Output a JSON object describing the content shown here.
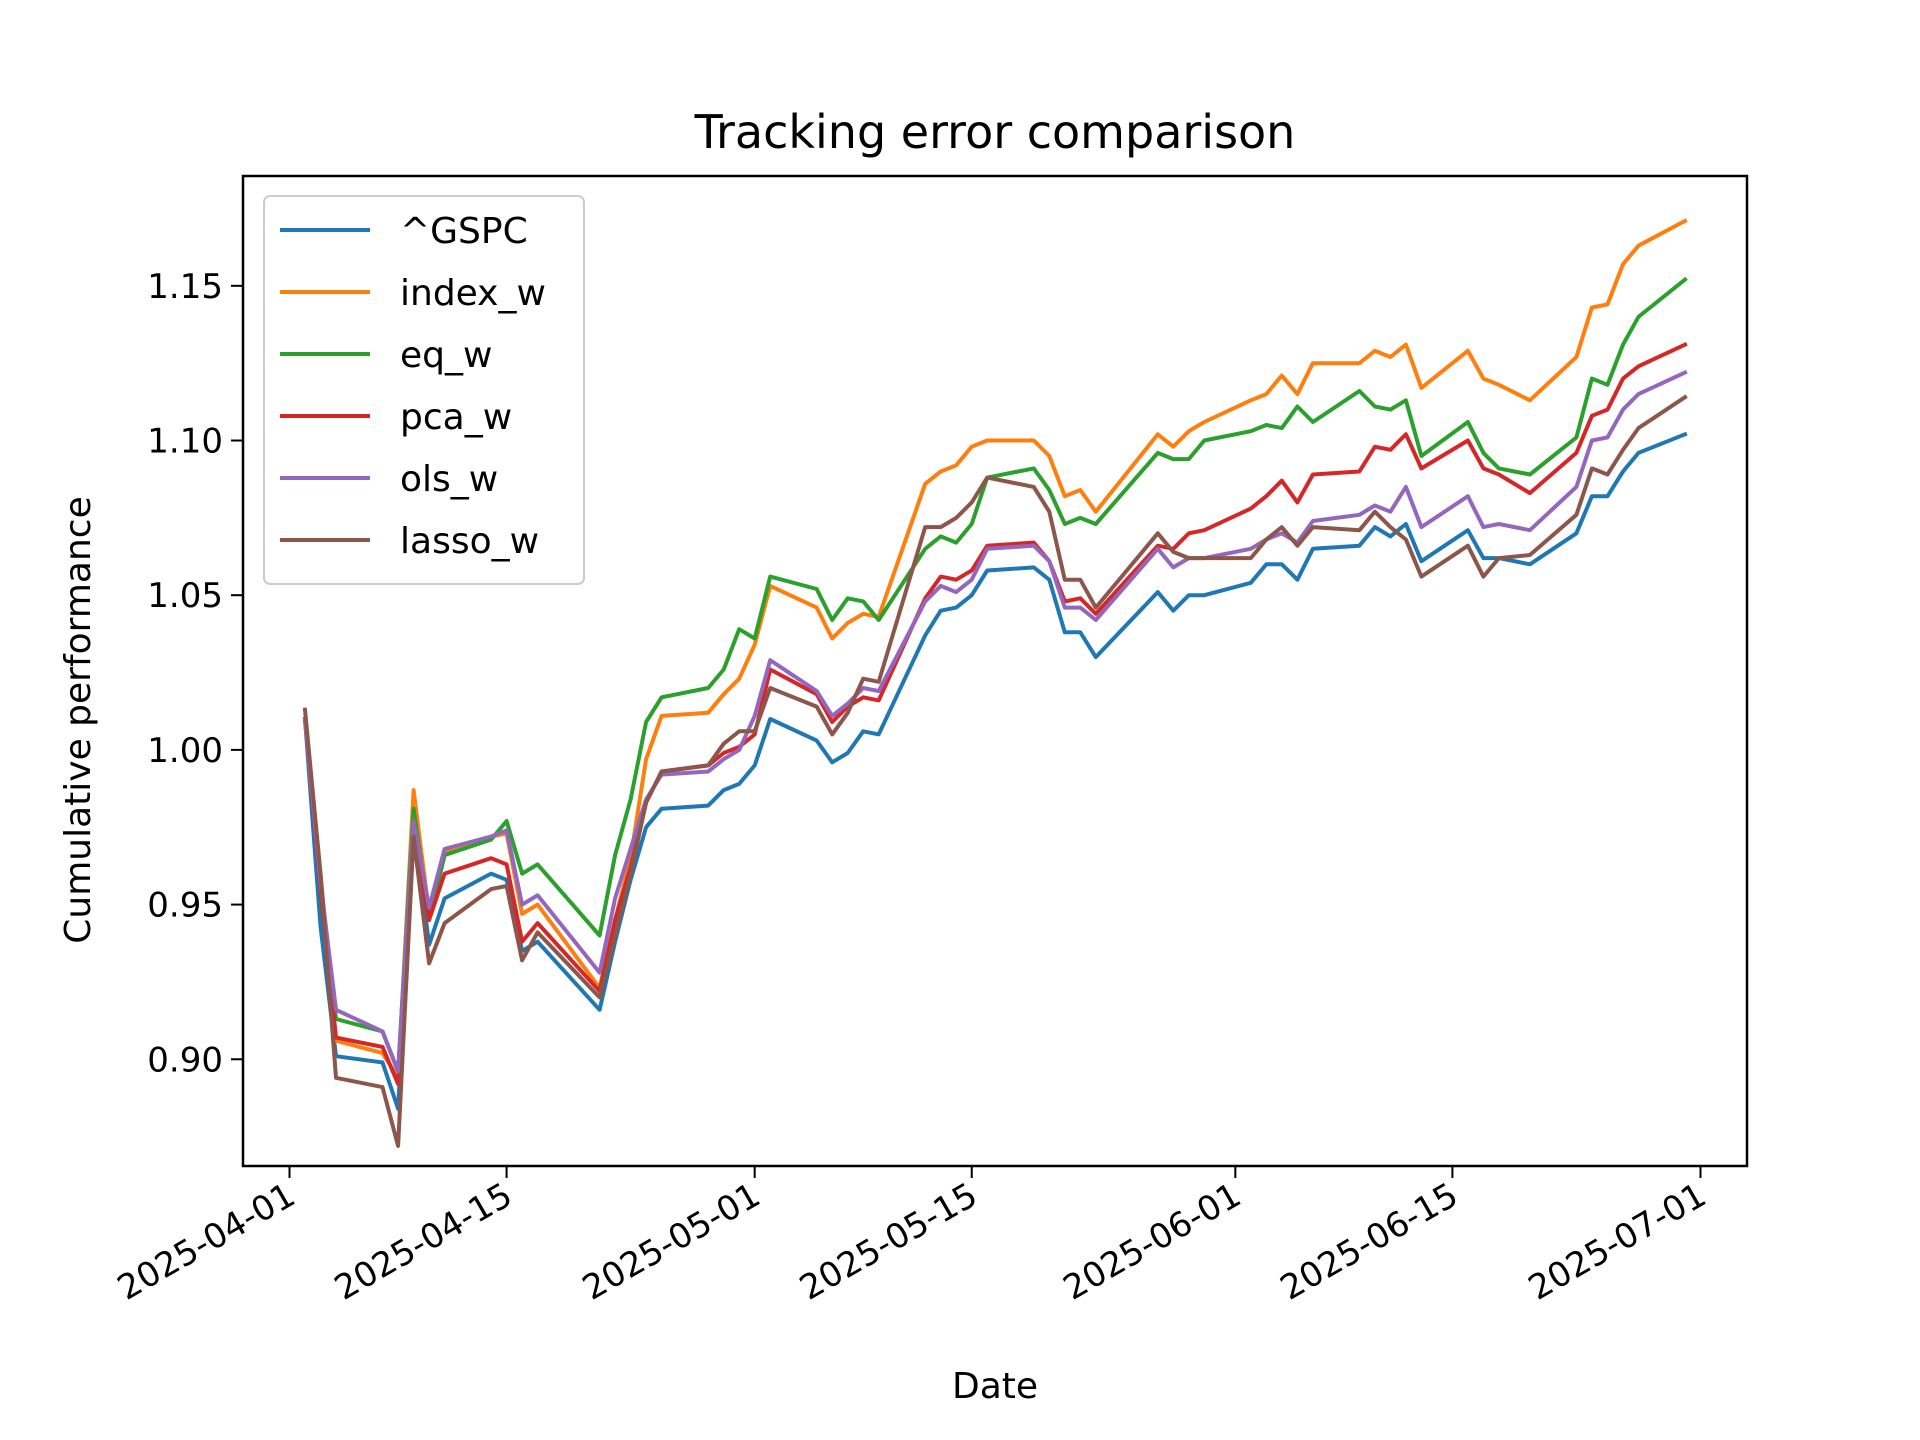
{
  "chart_data": {
    "type": "line",
    "title": "Tracking error comparison",
    "xlabel": "Date",
    "ylabel": "Cumulative performance",
    "x_ticks": [
      "2025-04-01",
      "2025-04-15",
      "2025-05-01",
      "2025-05-15",
      "2025-06-01",
      "2025-06-15",
      "2025-07-01"
    ],
    "y_ticks": [
      "0.90",
      "0.95",
      "1.00",
      "1.05",
      "1.10",
      "1.15"
    ],
    "xlim": [
      "2025-03-29",
      "2025-07-04"
    ],
    "ylim": [
      0.8655,
      1.1855
    ],
    "grid": false,
    "legend_position": "upper-left",
    "x": [
      "2025-04-02",
      "2025-04-03",
      "2025-04-04",
      "2025-04-07",
      "2025-04-08",
      "2025-04-09",
      "2025-04-10",
      "2025-04-11",
      "2025-04-14",
      "2025-04-15",
      "2025-04-16",
      "2025-04-17",
      "2025-04-21",
      "2025-04-22",
      "2025-04-23",
      "2025-04-24",
      "2025-04-25",
      "2025-04-28",
      "2025-04-29",
      "2025-04-30",
      "2025-05-01",
      "2025-05-02",
      "2025-05-05",
      "2025-05-06",
      "2025-05-07",
      "2025-05-08",
      "2025-05-09",
      "2025-05-12",
      "2025-05-13",
      "2025-05-14",
      "2025-05-15",
      "2025-05-16",
      "2025-05-19",
      "2025-05-20",
      "2025-05-21",
      "2025-05-22",
      "2025-05-23",
      "2025-05-27",
      "2025-05-28",
      "2025-05-29",
      "2025-05-30",
      "2025-06-02",
      "2025-06-03",
      "2025-06-04",
      "2025-06-05",
      "2025-06-06",
      "2025-06-09",
      "2025-06-10",
      "2025-06-11",
      "2025-06-12",
      "2025-06-13",
      "2025-06-16",
      "2025-06-17",
      "2025-06-18",
      "2025-06-20",
      "2025-06-23",
      "2025-06-24",
      "2025-06-25",
      "2025-06-26",
      "2025-06-27",
      "2025-06-30"
    ],
    "series": [
      {
        "name": "^GSPC",
        "color": "#1f77b4",
        "values": [
          1.01,
          0.943,
          0.901,
          0.899,
          0.884,
          0.977,
          0.937,
          0.952,
          0.96,
          0.958,
          0.935,
          0.938,
          0.916,
          0.938,
          0.958,
          0.975,
          0.981,
          0.982,
          0.987,
          0.989,
          0.995,
          1.01,
          1.003,
          0.996,
          0.999,
          1.006,
          1.005,
          1.037,
          1.045,
          1.046,
          1.05,
          1.058,
          1.059,
          1.055,
          1.038,
          1.038,
          1.03,
          1.051,
          1.045,
          1.05,
          1.05,
          1.054,
          1.06,
          1.06,
          1.055,
          1.065,
          1.066,
          1.072,
          1.069,
          1.073,
          1.061,
          1.071,
          1.062,
          1.062,
          1.06,
          1.07,
          1.082,
          1.082,
          1.09,
          1.096,
          1.102
        ]
      },
      {
        "name": "index_w",
        "color": "#ff7f0e",
        "values": [
          1.01,
          0.96,
          0.906,
          0.902,
          0.894,
          0.987,
          0.947,
          0.967,
          0.972,
          0.973,
          0.947,
          0.95,
          0.923,
          0.945,
          0.965,
          0.997,
          1.011,
          1.012,
          1.018,
          1.023,
          1.034,
          1.053,
          1.046,
          1.036,
          1.041,
          1.044,
          1.043,
          1.086,
          1.09,
          1.092,
          1.098,
          1.1,
          1.1,
          1.095,
          1.082,
          1.084,
          1.077,
          1.102,
          1.098,
          1.103,
          1.106,
          1.113,
          1.115,
          1.121,
          1.115,
          1.125,
          1.125,
          1.129,
          1.127,
          1.131,
          1.117,
          1.129,
          1.12,
          1.118,
          1.113,
          1.127,
          1.143,
          1.144,
          1.157,
          1.163,
          1.171
        ]
      },
      {
        "name": "eq_w",
        "color": "#2ca02c",
        "values": [
          1.01,
          0.958,
          0.913,
          0.909,
          0.896,
          0.981,
          0.945,
          0.966,
          0.971,
          0.977,
          0.96,
          0.963,
          0.94,
          0.966,
          0.984,
          1.009,
          1.017,
          1.02,
          1.026,
          1.039,
          1.036,
          1.056,
          1.052,
          1.042,
          1.049,
          1.048,
          1.042,
          1.065,
          1.069,
          1.067,
          1.073,
          1.088,
          1.091,
          1.084,
          1.073,
          1.075,
          1.073,
          1.096,
          1.094,
          1.094,
          1.1,
          1.103,
          1.105,
          1.104,
          1.111,
          1.106,
          1.116,
          1.111,
          1.11,
          1.113,
          1.095,
          1.106,
          1.096,
          1.091,
          1.089,
          1.101,
          1.12,
          1.118,
          1.131,
          1.14,
          1.152
        ]
      },
      {
        "name": "pca_w",
        "color": "#d62728",
        "values": [
          1.01,
          0.955,
          0.907,
          0.904,
          0.892,
          0.975,
          0.945,
          0.96,
          0.965,
          0.963,
          0.938,
          0.944,
          0.922,
          0.945,
          0.962,
          0.983,
          0.993,
          0.995,
          0.999,
          1.001,
          1.005,
          1.026,
          1.018,
          1.009,
          1.014,
          1.017,
          1.016,
          1.049,
          1.056,
          1.055,
          1.058,
          1.066,
          1.067,
          1.061,
          1.048,
          1.049,
          1.044,
          1.066,
          1.065,
          1.07,
          1.071,
          1.078,
          1.082,
          1.087,
          1.08,
          1.089,
          1.09,
          1.098,
          1.097,
          1.102,
          1.091,
          1.1,
          1.091,
          1.089,
          1.083,
          1.096,
          1.108,
          1.11,
          1.12,
          1.124,
          1.131
        ]
      },
      {
        "name": "ols_w",
        "color": "#9467bd",
        "values": [
          1.01,
          0.957,
          0.916,
          0.909,
          0.896,
          0.977,
          0.949,
          0.968,
          0.972,
          0.974,
          0.95,
          0.953,
          0.928,
          0.952,
          0.968,
          0.984,
          0.992,
          0.993,
          0.997,
          1.0,
          1.011,
          1.029,
          1.019,
          1.011,
          1.015,
          1.02,
          1.019,
          1.048,
          1.053,
          1.051,
          1.055,
          1.065,
          1.066,
          1.061,
          1.046,
          1.046,
          1.042,
          1.065,
          1.059,
          1.062,
          1.062,
          1.065,
          1.068,
          1.07,
          1.067,
          1.074,
          1.076,
          1.079,
          1.077,
          1.085,
          1.072,
          1.082,
          1.072,
          1.073,
          1.071,
          1.085,
          1.1,
          1.101,
          1.11,
          1.115,
          1.122
        ]
      },
      {
        "name": "lasso_w",
        "color": "#8c564b",
        "values": [
          1.013,
          0.96,
          0.894,
          0.891,
          0.872,
          0.972,
          0.931,
          0.944,
          0.955,
          0.956,
          0.932,
          0.941,
          0.92,
          0.94,
          0.96,
          0.983,
          0.993,
          0.995,
          1.002,
          1.006,
          1.006,
          1.02,
          1.014,
          1.005,
          1.012,
          1.023,
          1.022,
          1.072,
          1.072,
          1.075,
          1.08,
          1.088,
          1.085,
          1.077,
          1.055,
          1.055,
          1.046,
          1.07,
          1.064,
          1.062,
          1.062,
          1.062,
          1.068,
          1.072,
          1.066,
          1.072,
          1.071,
          1.077,
          1.072,
          1.068,
          1.056,
          1.066,
          1.056,
          1.062,
          1.063,
          1.076,
          1.091,
          1.089,
          1.097,
          1.104,
          1.114
        ]
      }
    ]
  }
}
